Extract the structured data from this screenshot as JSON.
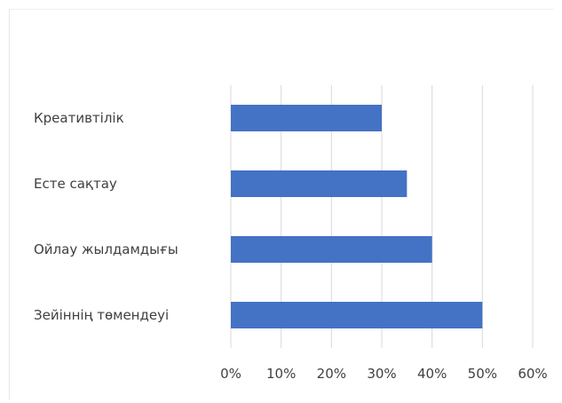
{
  "chart_data": {
    "type": "bar",
    "orientation": "horizontal",
    "categories": [
      "Креативтілік",
      "Есте сақтау",
      "Ойлау жылдамдығы",
      "Зейіннің төмендеуі"
    ],
    "values": [
      30,
      35,
      40,
      50
    ],
    "xlim": [
      0,
      60
    ],
    "x_ticks": [
      "0%",
      "10%",
      "20%",
      "30%",
      "40%",
      "50%",
      "60%"
    ],
    "grid": "vertical",
    "legend": "none",
    "bar_color": "#4472C4"
  }
}
